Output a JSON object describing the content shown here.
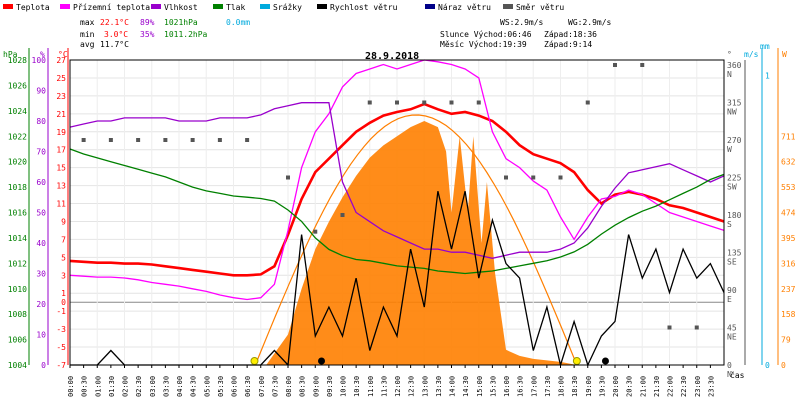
{
  "chart_data": {
    "type": "line",
    "title": "28.9.2018",
    "legend": [
      {
        "label": "Teplota",
        "color": "#ff0000"
      },
      {
        "label": "Přízemní teplota",
        "color": "#ff00ff"
      },
      {
        "label": "Vlhkost",
        "color": "#9900cc"
      },
      {
        "label": "Tlak",
        "color": "#008000"
      },
      {
        "label": "Srážky",
        "color": "#00aadd"
      },
      {
        "label": "Rychlost větru",
        "color": "#000000"
      },
      {
        "label": "Náraz větru",
        "color": "#000088"
      },
      {
        "label": "Směr větru",
        "color": "#555555"
      }
    ],
    "summary": {
      "max_label": "max",
      "min_label": "min",
      "avg_label": "avg",
      "max_temp": "22.1°C",
      "max_hum": "89%",
      "max_press": "1021hPa",
      "max_rain": "0.0mm",
      "min_temp": "3.0°C",
      "min_hum": "35%",
      "min_press": "1011.2hPa",
      "avg_temp": "11.7°C"
    },
    "astro": {
      "ws": "WS:2.9m/s",
      "wg": "WG:2.9m/s",
      "sun": "Slunce Východ:06:46",
      "sunset": "Západ:18:36",
      "moon": "Měsíc Východ:19:39",
      "moonset": "Západ:9:14"
    },
    "unit_labels": {
      "hpa": "hPa",
      "percent": "%",
      "celsius": "°C",
      "degrees": "°",
      "ms": "m/s",
      "w": "W",
      "mm": "mm",
      "time": "čas"
    },
    "y_axes": {
      "pressure_hpa": [
        "1004",
        "1006",
        "1008",
        "1010",
        "1012",
        "1014",
        "1016",
        "1018",
        "1020",
        "1022",
        "1024",
        "1026",
        "1028"
      ],
      "humidity_pct": [
        "0",
        "10",
        "20",
        "30",
        "40",
        "50",
        "60",
        "70",
        "80",
        "90",
        "100"
      ],
      "temperature_c": [
        "-7",
        "-5",
        "-3",
        "-1",
        "0",
        "1",
        "3",
        "5",
        "7",
        "9",
        "11",
        "13",
        "15",
        "17",
        "19",
        "21",
        "23",
        "25",
        "27"
      ],
      "direction_deg": [
        "0",
        "45",
        "90",
        "135",
        "180",
        "225",
        "270",
        "315",
        "360"
      ],
      "direction_name": [
        "N",
        "NE",
        "E",
        "SE",
        "S",
        "SW",
        "W",
        "NW",
        "N"
      ],
      "wind_ms": [
        "0",
        "1"
      ],
      "radiation_w": [
        "0",
        "79",
        "158",
        "237",
        "316",
        "395",
        "474",
        "553",
        "632",
        "711"
      ]
    },
    "x_labels": [
      "00:00",
      "00:30",
      "01:00",
      "01:30",
      "02:00",
      "02:30",
      "03:00",
      "03:30",
      "04:00",
      "04:30",
      "05:00",
      "05:30",
      "06:00",
      "06:30",
      "07:00",
      "07:30",
      "08:00",
      "08:30",
      "09:00",
      "09:30",
      "10:00",
      "10:30",
      "11:00",
      "11:30",
      "12:00",
      "12:30",
      "13:00",
      "13:30",
      "14:00",
      "14:30",
      "15:00",
      "15:30",
      "16:00",
      "16:30",
      "17:00",
      "17:30",
      "18:00",
      "18:30",
      "19:00",
      "19:30",
      "20:00",
      "20:30",
      "21:00",
      "21:30",
      "22:00",
      "22:30",
      "23:00",
      "23:30"
    ],
    "ylim_temperature": [
      -7,
      27
    ],
    "ylim_humidity": [
      0,
      100
    ],
    "ylim_pressure": [
      1004,
      1028
    ],
    "series": [
      {
        "name": "Teplota",
        "color": "#ff0000",
        "unit": "°C",
        "x": [
          0,
          0.5,
          1,
          1.5,
          2,
          2.5,
          3,
          3.5,
          4,
          4.5,
          5,
          5.5,
          6,
          6.5,
          7,
          7.5,
          8,
          8.5,
          9,
          9.5,
          10,
          10.5,
          11,
          11.5,
          12,
          12.5,
          13,
          13.5,
          14,
          14.5,
          15,
          15.5,
          16,
          16.5,
          17,
          17.5,
          18,
          18.5,
          19,
          19.5,
          20,
          20.5,
          21,
          21.5,
          22,
          22.5,
          23,
          23.5,
          24
        ],
        "y": [
          4.6,
          4.5,
          4.4,
          4.4,
          4.3,
          4.3,
          4.2,
          4.0,
          3.8,
          3.6,
          3.4,
          3.2,
          3.0,
          3.0,
          3.1,
          4.0,
          7.5,
          11.5,
          14.5,
          16.0,
          17.5,
          19.0,
          20.0,
          20.8,
          21.2,
          21.5,
          22.1,
          21.5,
          21.0,
          21.2,
          20.8,
          20.2,
          19.0,
          17.5,
          16.5,
          16.0,
          15.5,
          14.5,
          12.5,
          11.0,
          12.0,
          12.3,
          12.0,
          11.5,
          10.8,
          10.5,
          10.0,
          9.5,
          9.0
        ]
      },
      {
        "name": "Přízemní teplota",
        "color": "#ff00ff",
        "unit": "°C",
        "x": [
          0,
          0.5,
          1,
          1.5,
          2,
          2.5,
          3,
          3.5,
          4,
          4.5,
          5,
          5.5,
          6,
          6.5,
          7,
          7.5,
          8,
          8.5,
          9,
          9.5,
          10,
          10.5,
          11,
          11.5,
          12,
          12.5,
          13,
          13.5,
          14,
          14.5,
          15,
          15.5,
          16,
          16.5,
          17,
          17.5,
          18,
          18.5,
          19,
          19.5,
          20,
          20.5,
          21,
          21.5,
          22,
          22.5,
          23,
          23.5,
          24
        ],
        "y": [
          3.0,
          2.9,
          2.8,
          2.8,
          2.7,
          2.5,
          2.2,
          2.0,
          1.8,
          1.5,
          1.2,
          0.8,
          0.5,
          0.3,
          0.5,
          2.0,
          8.0,
          15.0,
          19.0,
          21.0,
          24.0,
          25.5,
          26.0,
          26.5,
          26.0,
          26.5,
          27.0,
          26.8,
          26.5,
          26.0,
          25.0,
          19.0,
          16.0,
          15.0,
          13.5,
          12.5,
          9.5,
          7.0,
          9.5,
          11.5,
          11.8,
          12.5,
          12.0,
          11.0,
          10.0,
          9.5,
          9.0,
          8.5,
          8.0
        ]
      },
      {
        "name": "Vlhkost",
        "color": "#9900cc",
        "unit": "%",
        "x": [
          0,
          0.5,
          1,
          1.5,
          2,
          2.5,
          3,
          3.5,
          4,
          4.5,
          5,
          5.5,
          6,
          6.5,
          7,
          7.5,
          8,
          8.5,
          9,
          9.5,
          10,
          10.5,
          11,
          11.5,
          12,
          12.5,
          13,
          13.5,
          14,
          14.5,
          15,
          15.5,
          16,
          16.5,
          17,
          17.5,
          18,
          18.5,
          19,
          19.5,
          20,
          20.5,
          21,
          21.5,
          22,
          22.5,
          23,
          23.5,
          24
        ],
        "y": [
          78,
          79,
          80,
          80,
          81,
          81,
          81,
          81,
          80,
          80,
          80,
          81,
          81,
          81,
          82,
          84,
          85,
          86,
          86,
          86,
          60,
          50,
          47,
          44,
          42,
          40,
          38,
          38,
          37,
          37,
          36,
          35,
          36,
          37,
          37,
          37,
          38,
          40,
          45,
          52,
          58,
          63,
          64,
          65,
          66,
          64,
          62,
          60,
          62
        ]
      },
      {
        "name": "Tlak",
        "color": "#008000",
        "unit": "hPa",
        "x": [
          0,
          0.5,
          1,
          1.5,
          2,
          2.5,
          3,
          3.5,
          4,
          4.5,
          5,
          5.5,
          6,
          6.5,
          7,
          7.5,
          8,
          8.5,
          9,
          9.5,
          10,
          10.5,
          11,
          11.5,
          12,
          12.5,
          13,
          13.5,
          14,
          14.5,
          15,
          15.5,
          16,
          16.5,
          17,
          17.5,
          18,
          18.5,
          19,
          19.5,
          20,
          20.5,
          21,
          21.5,
          22,
          22.5,
          23,
          23.5,
          24
        ],
        "y": [
          1021.0,
          1020.6,
          1020.3,
          1020.0,
          1019.7,
          1019.4,
          1019.1,
          1018.8,
          1018.4,
          1018.0,
          1017.7,
          1017.5,
          1017.3,
          1017.2,
          1017.1,
          1016.9,
          1016.2,
          1015.3,
          1014.0,
          1013.1,
          1012.6,
          1012.3,
          1012.2,
          1012.0,
          1011.8,
          1011.7,
          1011.6,
          1011.4,
          1011.3,
          1011.2,
          1011.3,
          1011.4,
          1011.6,
          1011.8,
          1012.0,
          1012.2,
          1012.5,
          1012.9,
          1013.5,
          1014.3,
          1015.0,
          1015.6,
          1016.1,
          1016.5,
          1017.0,
          1017.5,
          1018.0,
          1018.6,
          1019.0
        ]
      },
      {
        "name": "Rychlost větru",
        "color": "#000000",
        "unit": "m/s",
        "x": [
          0,
          1,
          1.5,
          2,
          3,
          4,
          5,
          6,
          7,
          7.5,
          8,
          8.5,
          9,
          9.5,
          10,
          10.5,
          11,
          11.5,
          12,
          12.5,
          13,
          13.5,
          14,
          14.5,
          15,
          15.5,
          16,
          16.5,
          17,
          17.5,
          18,
          18.5,
          19,
          19.5,
          20,
          20.5,
          21,
          21.5,
          22,
          22.5,
          23,
          23.5,
          24
        ],
        "y": [
          0,
          0,
          0.05,
          0,
          0,
          0,
          0,
          0,
          0,
          0.05,
          0,
          0.45,
          0.1,
          0.2,
          0.1,
          0.3,
          0.05,
          0.2,
          0.1,
          0.4,
          0.2,
          0.6,
          0.4,
          0.6,
          0.3,
          0.5,
          0.35,
          0.3,
          0.05,
          0.2,
          0,
          0.15,
          0,
          0.1,
          0.15,
          0.45,
          0.3,
          0.4,
          0.25,
          0.4,
          0.3,
          0.35,
          0.25
        ]
      },
      {
        "name": "Směr větru",
        "color": "#555555",
        "unit": "°",
        "x": [
          0.5,
          1.5,
          2.5,
          3.5,
          4.5,
          5.5,
          6.5,
          8,
          9,
          10,
          11,
          12,
          13,
          14,
          15,
          16,
          17,
          18,
          19,
          20,
          21,
          22,
          23
        ],
        "y": [
          270,
          270,
          270,
          270,
          270,
          270,
          270,
          225,
          160,
          180,
          315,
          315,
          315,
          315,
          315,
          225,
          225,
          225,
          315,
          360,
          360,
          45,
          45
        ]
      }
    ]
  }
}
